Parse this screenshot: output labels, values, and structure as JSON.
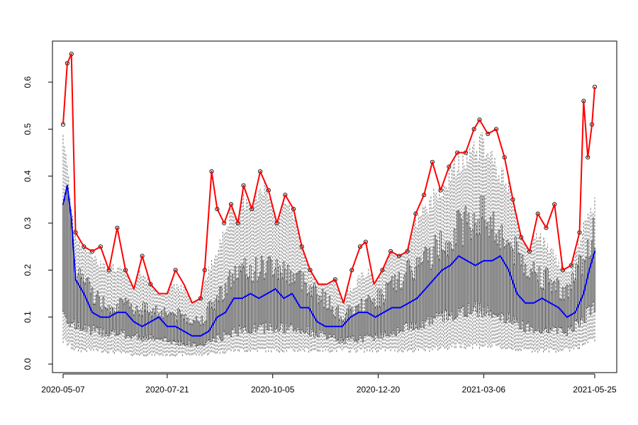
{
  "chart_data": {
    "type": "line",
    "title": "",
    "xlabel": "",
    "ylabel": "",
    "x_start": "2020-05-07",
    "x_end": "2021-05-25",
    "xlim": [
      "2020-05-07",
      "2021-05-25"
    ],
    "ylim": [
      0,
      0.6
    ],
    "x_ticks": [
      "2020-05-07",
      "2020-07-21",
      "2020-10-05",
      "2020-12-20",
      "2021-03-06",
      "2021-05-25"
    ],
    "y_ticks": [
      "0.0",
      "0.1",
      "0.2",
      "0.3",
      "0.4",
      "0.5",
      "0.6"
    ],
    "grid": false,
    "legend": "none",
    "colors": {
      "max_line": "#ff0000",
      "median_line": "#0000ff",
      "box": "#000000",
      "whisker": "#7f7f7f"
    },
    "series": [
      {
        "role": "max",
        "color": "#ff0000",
        "points": [
          [
            "2020-05-07",
            0.51
          ],
          [
            "2020-05-10",
            0.64
          ],
          [
            "2020-05-13",
            0.66
          ],
          [
            "2020-05-16",
            0.28
          ],
          [
            "2020-05-22",
            0.25
          ],
          [
            "2020-05-28",
            0.24
          ],
          [
            "2020-06-03",
            0.25
          ],
          [
            "2020-06-09",
            0.2
          ],
          [
            "2020-06-15",
            0.29
          ],
          [
            "2020-06-21",
            0.2
          ],
          [
            "2020-06-27",
            0.16
          ],
          [
            "2020-07-03",
            0.23
          ],
          [
            "2020-07-09",
            0.17
          ],
          [
            "2020-07-15",
            0.15
          ],
          [
            "2020-07-21",
            0.15
          ],
          [
            "2020-07-27",
            0.2
          ],
          [
            "2020-08-02",
            0.17
          ],
          [
            "2020-08-08",
            0.13
          ],
          [
            "2020-08-14",
            0.14
          ],
          [
            "2020-08-17",
            0.2
          ],
          [
            "2020-08-22",
            0.41
          ],
          [
            "2020-08-26",
            0.33
          ],
          [
            "2020-08-31",
            0.3
          ],
          [
            "2020-09-05",
            0.34
          ],
          [
            "2020-09-10",
            0.3
          ],
          [
            "2020-09-14",
            0.38
          ],
          [
            "2020-09-20",
            0.33
          ],
          [
            "2020-09-26",
            0.41
          ],
          [
            "2020-10-02",
            0.37
          ],
          [
            "2020-10-08",
            0.3
          ],
          [
            "2020-10-14",
            0.36
          ],
          [
            "2020-10-20",
            0.33
          ],
          [
            "2020-10-26",
            0.25
          ],
          [
            "2020-11-01",
            0.2
          ],
          [
            "2020-11-07",
            0.17
          ],
          [
            "2020-11-13",
            0.17
          ],
          [
            "2020-11-19",
            0.18
          ],
          [
            "2020-11-25",
            0.13
          ],
          [
            "2020-12-01",
            0.2
          ],
          [
            "2020-12-07",
            0.25
          ],
          [
            "2020-12-11",
            0.26
          ],
          [
            "2020-12-17",
            0.17
          ],
          [
            "2020-12-23",
            0.2
          ],
          [
            "2020-12-29",
            0.24
          ],
          [
            "2021-01-04",
            0.23
          ],
          [
            "2021-01-10",
            0.24
          ],
          [
            "2021-01-16",
            0.32
          ],
          [
            "2021-01-22",
            0.36
          ],
          [
            "2021-01-28",
            0.43
          ],
          [
            "2021-02-03",
            0.37
          ],
          [
            "2021-02-09",
            0.42
          ],
          [
            "2021-02-15",
            0.45
          ],
          [
            "2021-02-21",
            0.45
          ],
          [
            "2021-02-27",
            0.5
          ],
          [
            "2021-03-03",
            0.52
          ],
          [
            "2021-03-09",
            0.49
          ],
          [
            "2021-03-15",
            0.5
          ],
          [
            "2021-03-21",
            0.44
          ],
          [
            "2021-03-27",
            0.35
          ],
          [
            "2021-04-02",
            0.27
          ],
          [
            "2021-04-08",
            0.24
          ],
          [
            "2021-04-14",
            0.32
          ],
          [
            "2021-04-20",
            0.29
          ],
          [
            "2021-04-26",
            0.34
          ],
          [
            "2021-05-02",
            0.2
          ],
          [
            "2021-05-08",
            0.21
          ],
          [
            "2021-05-14",
            0.28
          ],
          [
            "2021-05-17",
            0.56
          ],
          [
            "2021-05-20",
            0.44
          ],
          [
            "2021-05-23",
            0.51
          ],
          [
            "2021-05-25",
            0.59
          ]
        ]
      },
      {
        "role": "median",
        "color": "#0000ff",
        "points": [
          [
            "2020-05-07",
            0.34
          ],
          [
            "2020-05-10",
            0.38
          ],
          [
            "2020-05-13",
            0.31
          ],
          [
            "2020-05-16",
            0.18
          ],
          [
            "2020-05-22",
            0.15
          ],
          [
            "2020-05-28",
            0.11
          ],
          [
            "2020-06-03",
            0.1
          ],
          [
            "2020-06-09",
            0.1
          ],
          [
            "2020-06-15",
            0.11
          ],
          [
            "2020-06-21",
            0.11
          ],
          [
            "2020-06-27",
            0.09
          ],
          [
            "2020-07-03",
            0.08
          ],
          [
            "2020-07-09",
            0.09
          ],
          [
            "2020-07-15",
            0.1
          ],
          [
            "2020-07-21",
            0.08
          ],
          [
            "2020-07-27",
            0.08
          ],
          [
            "2020-08-02",
            0.07
          ],
          [
            "2020-08-08",
            0.06
          ],
          [
            "2020-08-14",
            0.06
          ],
          [
            "2020-08-20",
            0.07
          ],
          [
            "2020-08-26",
            0.1
          ],
          [
            "2020-09-01",
            0.11
          ],
          [
            "2020-09-07",
            0.14
          ],
          [
            "2020-09-13",
            0.14
          ],
          [
            "2020-09-19",
            0.15
          ],
          [
            "2020-09-25",
            0.14
          ],
          [
            "2020-10-01",
            0.15
          ],
          [
            "2020-10-07",
            0.16
          ],
          [
            "2020-10-13",
            0.14
          ],
          [
            "2020-10-19",
            0.15
          ],
          [
            "2020-10-25",
            0.12
          ],
          [
            "2020-10-31",
            0.12
          ],
          [
            "2020-11-06",
            0.09
          ],
          [
            "2020-11-12",
            0.08
          ],
          [
            "2020-11-18",
            0.08
          ],
          [
            "2020-11-24",
            0.08
          ],
          [
            "2020-11-30",
            0.1
          ],
          [
            "2020-12-06",
            0.11
          ],
          [
            "2020-12-12",
            0.11
          ],
          [
            "2020-12-18",
            0.1
          ],
          [
            "2020-12-24",
            0.11
          ],
          [
            "2020-12-30",
            0.12
          ],
          [
            "2021-01-05",
            0.12
          ],
          [
            "2021-01-11",
            0.13
          ],
          [
            "2021-01-17",
            0.14
          ],
          [
            "2021-01-23",
            0.16
          ],
          [
            "2021-01-29",
            0.18
          ],
          [
            "2021-02-04",
            0.2
          ],
          [
            "2021-02-10",
            0.21
          ],
          [
            "2021-02-16",
            0.23
          ],
          [
            "2021-02-22",
            0.22
          ],
          [
            "2021-02-28",
            0.21
          ],
          [
            "2021-03-06",
            0.22
          ],
          [
            "2021-03-12",
            0.22
          ],
          [
            "2021-03-18",
            0.23
          ],
          [
            "2021-03-24",
            0.2
          ],
          [
            "2021-03-30",
            0.15
          ],
          [
            "2021-04-05",
            0.13
          ],
          [
            "2021-04-11",
            0.13
          ],
          [
            "2021-04-17",
            0.14
          ],
          [
            "2021-04-23",
            0.13
          ],
          [
            "2021-04-29",
            0.12
          ],
          [
            "2021-05-05",
            0.1
          ],
          [
            "2021-05-11",
            0.11
          ],
          [
            "2021-05-17",
            0.15
          ],
          [
            "2021-05-21",
            0.2
          ],
          [
            "2021-05-25",
            0.24
          ]
        ]
      }
    ],
    "distribution_envelope": {
      "description_of": "daily box plots",
      "points": [
        [
          "2020-05-07",
          0.05,
          0.11,
          0.3,
          0.5
        ],
        [
          "2020-05-16",
          0.03,
          0.08,
          0.2,
          0.28
        ],
        [
          "2020-06-03",
          0.03,
          0.07,
          0.13,
          0.22
        ],
        [
          "2020-06-27",
          0.02,
          0.06,
          0.12,
          0.2
        ],
        [
          "2020-07-21",
          0.02,
          0.05,
          0.11,
          0.18
        ],
        [
          "2020-08-14",
          0.02,
          0.04,
          0.09,
          0.15
        ],
        [
          "2020-09-07",
          0.03,
          0.07,
          0.19,
          0.35
        ],
        [
          "2020-10-05",
          0.03,
          0.08,
          0.21,
          0.38
        ],
        [
          "2020-10-31",
          0.03,
          0.07,
          0.17,
          0.3
        ],
        [
          "2020-11-24",
          0.03,
          0.05,
          0.1,
          0.15
        ],
        [
          "2020-12-20",
          0.03,
          0.06,
          0.14,
          0.22
        ],
        [
          "2021-01-22",
          0.03,
          0.09,
          0.22,
          0.33
        ],
        [
          "2021-02-16",
          0.04,
          0.11,
          0.29,
          0.44
        ],
        [
          "2021-03-06",
          0.04,
          0.12,
          0.32,
          0.48
        ],
        [
          "2021-04-05",
          0.03,
          0.08,
          0.21,
          0.31
        ],
        [
          "2021-05-05",
          0.03,
          0.07,
          0.15,
          0.2
        ],
        [
          "2021-05-25",
          0.05,
          0.12,
          0.28,
          0.35
        ]
      ]
    }
  }
}
